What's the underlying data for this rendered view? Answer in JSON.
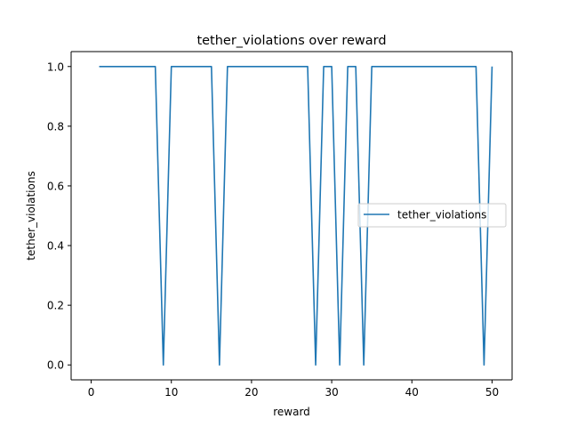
{
  "chart_data": {
    "type": "line",
    "title": "tether_violations over reward",
    "xlabel": "reward",
    "ylabel": "tether_violations",
    "xlim": [
      -2.5,
      52.5
    ],
    "ylim": [
      -0.05,
      1.05
    ],
    "xticks": [
      0,
      10,
      20,
      30,
      40,
      50
    ],
    "xtick_labels": [
      "0",
      "10",
      "20",
      "30",
      "40",
      "50"
    ],
    "yticks": [
      0.0,
      0.2,
      0.4,
      0.6,
      0.8,
      1.0
    ],
    "ytick_labels": [
      "0.0",
      "0.2",
      "0.4",
      "0.6",
      "0.8",
      "1.0"
    ],
    "grid": false,
    "legend_position": "center-right",
    "series": [
      {
        "name": "tether_violations",
        "color": "#1f77b4",
        "x": [
          1,
          2,
          3,
          4,
          5,
          6,
          7,
          8,
          9,
          10,
          11,
          12,
          13,
          14,
          15,
          16,
          17,
          18,
          19,
          20,
          21,
          22,
          23,
          24,
          25,
          26,
          27,
          28,
          29,
          30,
          31,
          32,
          33,
          34,
          35,
          36,
          37,
          38,
          39,
          40,
          41,
          42,
          43,
          44,
          45,
          46,
          47,
          48,
          49,
          50
        ],
        "y": [
          1,
          1,
          1,
          1,
          1,
          1,
          1,
          1,
          0,
          1,
          1,
          1,
          1,
          1,
          1,
          0,
          1,
          1,
          1,
          1,
          1,
          1,
          1,
          1,
          1,
          1,
          1,
          0,
          1,
          1,
          0,
          1,
          1,
          0,
          1,
          1,
          1,
          1,
          1,
          1,
          1,
          1,
          1,
          1,
          1,
          1,
          1,
          1,
          0,
          1
        ]
      }
    ]
  }
}
